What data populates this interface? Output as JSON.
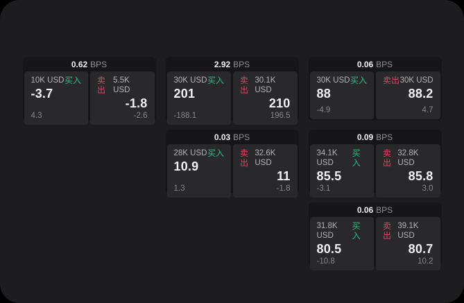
{
  "colors": {
    "bg": "#000000",
    "panel": "#1d1d1f",
    "card": "#161618",
    "subpanel": "#29292b",
    "text-primary": "#f2f2f3",
    "text-label": "#b4b5b7",
    "text-dim": "#8f9092",
    "text-muted": "#87878a",
    "green": "#2ebd85",
    "red": "#dd4560"
  },
  "labels": {
    "bps": "BPS",
    "buy": "买入",
    "sell": "卖出"
  },
  "cards": [
    {
      "row": 1,
      "col": 1,
      "bps": "0.62",
      "buy": {
        "amount": "10K USD",
        "value": "-3.7",
        "sub": "4.3"
      },
      "sell": {
        "amount": "5.5K USD",
        "value": "-1.8",
        "sub": "-2.6"
      }
    },
    {
      "row": 1,
      "col": 2,
      "bps": "2.92",
      "buy": {
        "amount": "30K USD",
        "value": "201",
        "sub": "-188.1"
      },
      "sell": {
        "amount": "30.1K USD",
        "value": "210",
        "sub": "196.5"
      }
    },
    {
      "row": 1,
      "col": 3,
      "bps": "0.06",
      "buy": {
        "amount": "30K USD",
        "value": "88",
        "sub": "-4.9"
      },
      "sell": {
        "amount": "30K USD",
        "value": "88.2",
        "sub": "4.7"
      }
    },
    {
      "row": 2,
      "col": 2,
      "bps": "0.03",
      "buy": {
        "amount": "28K USD",
        "value": "10.9",
        "sub": "1.3"
      },
      "sell": {
        "amount": "32.6K USD",
        "value": "11",
        "sub": "-1.8"
      }
    },
    {
      "row": 2,
      "col": 3,
      "bps": "0.09",
      "buy": {
        "amount": "34.1K USD",
        "value": "85.5",
        "sub": "-3.1"
      },
      "sell": {
        "amount": "32.8K USD",
        "value": "85.8",
        "sub": "3.0"
      }
    },
    {
      "row": 3,
      "col": 3,
      "bps": "0.06",
      "buy": {
        "amount": "31.8K USD",
        "value": "80.5",
        "sub": "-10.8"
      },
      "sell": {
        "amount": "39.1K USD",
        "value": "80.7",
        "sub": "10.2"
      }
    }
  ]
}
